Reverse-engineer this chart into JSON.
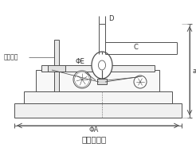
{
  "title": "外形尺寸图",
  "label_cable": "橡套电缆",
  "label_phi_a": "ΦA",
  "label_phi_e": "ΦE",
  "label_d": "D",
  "label_c": "C",
  "label_a": "a",
  "bg_color": "#ffffff",
  "line_color": "#505050",
  "fig_width": 2.46,
  "fig_height": 2.0,
  "dpi": 100
}
